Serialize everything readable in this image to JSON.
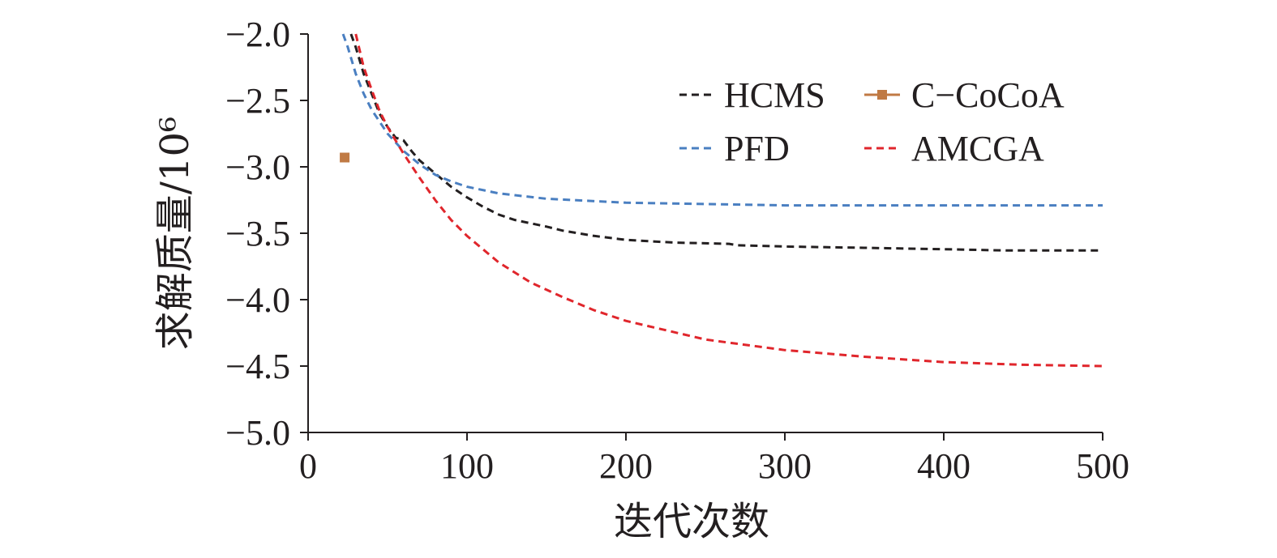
{
  "chart_data": {
    "type": "line",
    "title": "",
    "xlabel": "迭代次数",
    "ylabel": "求解质量/10⁶",
    "xlim": [
      0,
      500
    ],
    "ylim": [
      -5.0,
      -2.0
    ],
    "xticks": [
      0,
      100,
      200,
      300,
      400,
      500
    ],
    "xtick_labels": [
      "0",
      "100",
      "200",
      "300",
      "400",
      "500"
    ],
    "yticks": [
      -2.0,
      -2.5,
      -3.0,
      -3.5,
      -4.0,
      -4.5,
      -5.0
    ],
    "ytick_labels": [
      "−2.0",
      "−2.5",
      "−3.0",
      "−3.5",
      "−4.0",
      "−4.5",
      "−5.0"
    ],
    "grid": false,
    "legend_position": "top-right",
    "series": [
      {
        "name": "HCMS",
        "kind": "dashed-line",
        "color": "#231f20",
        "x": [
          27,
          30,
          35,
          40,
          45,
          50,
          55,
          60,
          65,
          70,
          80,
          90,
          100,
          110,
          120,
          130,
          150,
          160,
          180,
          200,
          230,
          265,
          270,
          300,
          350,
          400,
          440,
          500
        ],
        "y": [
          -2.0,
          -2.1,
          -2.3,
          -2.45,
          -2.6,
          -2.7,
          -2.78,
          -2.8,
          -2.88,
          -2.95,
          -3.05,
          -3.15,
          -3.23,
          -3.3,
          -3.36,
          -3.4,
          -3.45,
          -3.48,
          -3.52,
          -3.55,
          -3.57,
          -3.58,
          -3.59,
          -3.6,
          -3.61,
          -3.62,
          -3.63,
          -3.63
        ]
      },
      {
        "name": "C−CoCoA",
        "kind": "marker",
        "color": "#c07a44",
        "x": [
          23
        ],
        "y": [
          -2.93
        ]
      },
      {
        "name": "PFD",
        "kind": "dashed-line",
        "color": "#4a7fc1",
        "x": [
          22,
          25,
          30,
          35,
          40,
          50,
          60,
          70,
          80,
          90,
          100,
          120,
          150,
          200,
          250,
          300,
          400,
          500
        ],
        "y": [
          -2.0,
          -2.1,
          -2.3,
          -2.45,
          -2.57,
          -2.75,
          -2.88,
          -2.98,
          -3.06,
          -3.11,
          -3.15,
          -3.2,
          -3.24,
          -3.27,
          -3.28,
          -3.29,
          -3.29,
          -3.29
        ]
      },
      {
        "name": "AMCGA",
        "kind": "dashed-line",
        "color": "#e0262c",
        "x": [
          30,
          35,
          40,
          45,
          50,
          60,
          70,
          80,
          90,
          100,
          120,
          140,
          160,
          180,
          200,
          250,
          300,
          350,
          400,
          450,
          500
        ],
        "y": [
          -2.0,
          -2.25,
          -2.42,
          -2.58,
          -2.7,
          -2.9,
          -3.08,
          -3.25,
          -3.4,
          -3.52,
          -3.72,
          -3.87,
          -3.98,
          -4.08,
          -4.16,
          -4.3,
          -4.38,
          -4.43,
          -4.47,
          -4.49,
          -4.5
        ]
      }
    ]
  }
}
